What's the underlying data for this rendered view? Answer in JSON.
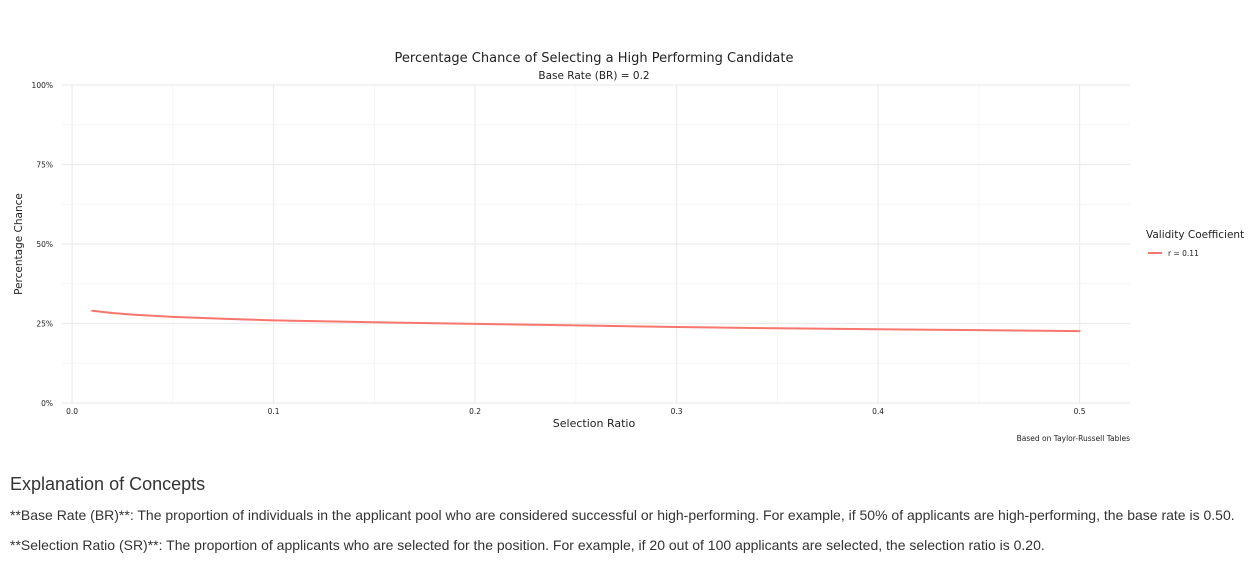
{
  "chart_data": {
    "type": "line",
    "title": "Percentage Chance of Selecting a High Performing Candidate",
    "subtitle": "Base Rate (BR) = 0.2",
    "xlabel": "Selection Ratio",
    "ylabel": "Percentage Chance",
    "caption": "Based on Taylor-Russell Tables",
    "xlim": [
      -0.005,
      0.525
    ],
    "ylim": [
      0,
      1
    ],
    "x_ticks": [
      0.0,
      0.1,
      0.2,
      0.3,
      0.4,
      0.5
    ],
    "x_tick_labels": [
      "0.0",
      "0.1",
      "0.2",
      "0.3",
      "0.4",
      "0.5"
    ],
    "y_ticks": [
      0,
      0.25,
      0.5,
      0.75,
      1.0
    ],
    "y_tick_labels": [
      "0%",
      "25%",
      "50%",
      "75%",
      "100%"
    ],
    "grid": true,
    "legend": {
      "title": "Validity Coefficient",
      "position": "right"
    },
    "series": [
      {
        "name": "r = 0.11",
        "color": "#F8766D",
        "x": [
          0.01,
          0.02,
          0.03,
          0.05,
          0.075,
          0.1,
          0.15,
          0.2,
          0.25,
          0.3,
          0.35,
          0.4,
          0.45,
          0.5
        ],
        "y": [
          0.29,
          0.283,
          0.278,
          0.271,
          0.265,
          0.26,
          0.254,
          0.249,
          0.244,
          0.239,
          0.235,
          0.232,
          0.229,
          0.226
        ]
      }
    ]
  },
  "explanation": {
    "heading": "Explanation of Concepts",
    "base_rate": "**Base Rate (BR)**: The proportion of individuals in the applicant pool who are considered successful or high-performing. For example, if 50% of applicants are high-performing, the base rate is 0.50.",
    "selection_ratio": "**Selection Ratio (SR)**: The proportion of applicants who are selected for the position. For example, if 20 out of 100 applicants are selected, the selection ratio is 0.20."
  }
}
